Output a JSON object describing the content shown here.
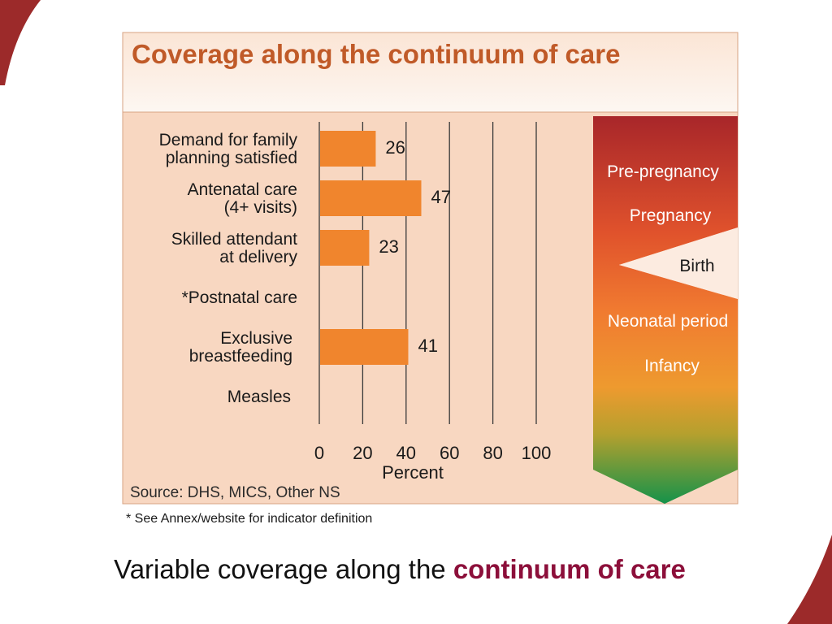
{
  "panel": {
    "title": "Coverage along the continuum of care",
    "source": "Source: DHS, MICS, Other NS",
    "footnote": "* See Annex/website for indicator definition"
  },
  "caption": {
    "text": "Variable coverage along the ",
    "highlight": "continuum of care"
  },
  "stages": [
    "Pre-pregnancy",
    "Pregnancy",
    "Birth",
    "Neonatal period",
    "Infancy"
  ],
  "colors": {
    "bar": "#f0852d",
    "panel_bg": "#f8d7c1",
    "title_text": "#c05a28",
    "accent": "#8c0f3a",
    "stage_top": "#a8262a",
    "stage_mid": "#ee7b2e",
    "stage_bottom": "#15924a"
  },
  "chart_data": {
    "type": "bar",
    "orientation": "horizontal",
    "title": "Coverage along the continuum of care",
    "categories": [
      [
        "Demand for family",
        "planning satisfied"
      ],
      [
        "Antenatal care",
        "(4+ visits)"
      ],
      [
        "Skilled attendant",
        "at delivery"
      ],
      [
        "*Postnatal care"
      ],
      [
        "Exclusive",
        "breastfeeding"
      ],
      [
        "Measles"
      ]
    ],
    "values": [
      26,
      47,
      23,
      null,
      41,
      null
    ],
    "xlabel": "Percent",
    "xlim": [
      0,
      100
    ],
    "xticks": [
      0,
      20,
      40,
      60,
      80,
      100
    ],
    "grid": true
  }
}
